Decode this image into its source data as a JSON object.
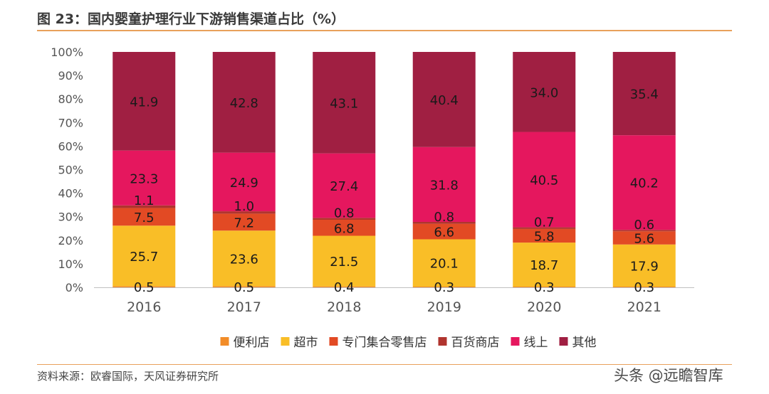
{
  "header": {
    "title": "图 23：国内婴童护理行业下游销售渠道占比（%）"
  },
  "footer": {
    "source": "资料来源：欧睿国际，天风证券研究所",
    "watermark": "头条 @远瞻智库"
  },
  "chart_data": {
    "type": "bar",
    "stacked": true,
    "title": "",
    "categories": [
      "2016",
      "2017",
      "2018",
      "2019",
      "2020",
      "2021"
    ],
    "ylim": [
      0,
      100
    ],
    "y_ticks": [
      "0%",
      "10%",
      "20%",
      "30%",
      "40%",
      "50%",
      "60%",
      "70%",
      "80%",
      "90%",
      "100%"
    ],
    "legend_position": "bottom",
    "series": [
      {
        "name": "便利店",
        "color": "#F28C28",
        "values": [
          0.5,
          0.5,
          0.4,
          0.3,
          0.3,
          0.3
        ]
      },
      {
        "name": "超市",
        "color": "#F9BE27",
        "values": [
          25.7,
          23.6,
          21.5,
          20.1,
          18.7,
          17.9
        ]
      },
      {
        "name": "专门集合零售店",
        "color": "#E24A24",
        "values": [
          7.5,
          7.2,
          6.8,
          6.6,
          5.8,
          5.6
        ]
      },
      {
        "name": "百货商店",
        "color": "#B0342E",
        "values": [
          1.1,
          1.0,
          0.8,
          0.8,
          0.7,
          0.6
        ]
      },
      {
        "name": "线上",
        "color": "#E5175E",
        "values": [
          23.3,
          24.9,
          27.4,
          31.8,
          40.5,
          40.2
        ]
      },
      {
        "name": "其他",
        "color": "#A01F42",
        "values": [
          41.9,
          42.8,
          43.1,
          40.4,
          34.0,
          35.4
        ]
      }
    ]
  }
}
